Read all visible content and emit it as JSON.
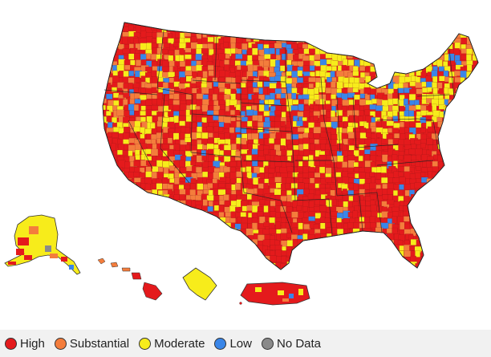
{
  "legend": {
    "items": [
      {
        "key": "high",
        "label": "High",
        "color": "#e41a1c"
      },
      {
        "key": "substantial",
        "label": "Substantial",
        "color": "#f47d3c"
      },
      {
        "key": "moderate",
        "label": "Moderate",
        "color": "#f7ec1b"
      },
      {
        "key": "low",
        "label": "Low",
        "color": "#3a86e8"
      },
      {
        "key": "nodata",
        "label": "No Data",
        "color": "#8a8a8a"
      }
    ]
  },
  "map": {
    "regions": [
      "Contiguous United States",
      "Alaska",
      "Hawaii",
      "Puerto Rico",
      "Guam"
    ],
    "predominant_level": "high",
    "border_color": "#333333"
  }
}
